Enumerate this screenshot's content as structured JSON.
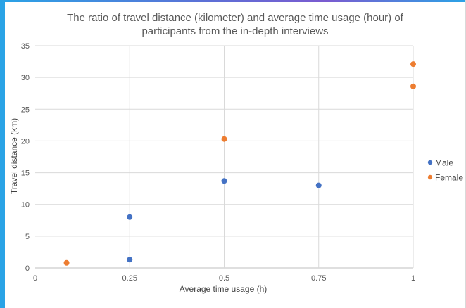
{
  "chart_data": {
    "type": "scatter",
    "title_lines": [
      "The ratio of travel distance (kilometer) and average time usage (hour) of",
      "participants from the in-depth interviews"
    ],
    "xlabel": "Average time usage (h)",
    "ylabel": "Travel distance (km)",
    "xlim": [
      0,
      1
    ],
    "ylim": [
      0,
      35
    ],
    "x_ticks": [
      0,
      0.25,
      0.5,
      0.75,
      1
    ],
    "x_tick_labels": [
      "0",
      "0.25",
      "0.5",
      "0.75",
      "1"
    ],
    "y_ticks": [
      0,
      5,
      10,
      15,
      20,
      25,
      30,
      35
    ],
    "y_tick_labels": [
      "0",
      "5",
      "10",
      "15",
      "20",
      "25",
      "30",
      "35"
    ],
    "grid": "vertical lines at x ticks; horizontal lines at y ticks",
    "legend_position": "right",
    "series": [
      {
        "name": "Male",
        "color": "#4472c4",
        "points": [
          {
            "x": 0.25,
            "y": 8.0
          },
          {
            "x": 0.25,
            "y": 1.3
          },
          {
            "x": 0.5,
            "y": 13.7
          },
          {
            "x": 0.75,
            "y": 13.0
          }
        ]
      },
      {
        "name": "Female",
        "color": "#ed7d31",
        "points": [
          {
            "x": 0.083,
            "y": 0.8
          },
          {
            "x": 0.5,
            "y": 20.3
          },
          {
            "x": 1.0,
            "y": 32.1
          },
          {
            "x": 1.0,
            "y": 28.6
          }
        ]
      }
    ]
  }
}
